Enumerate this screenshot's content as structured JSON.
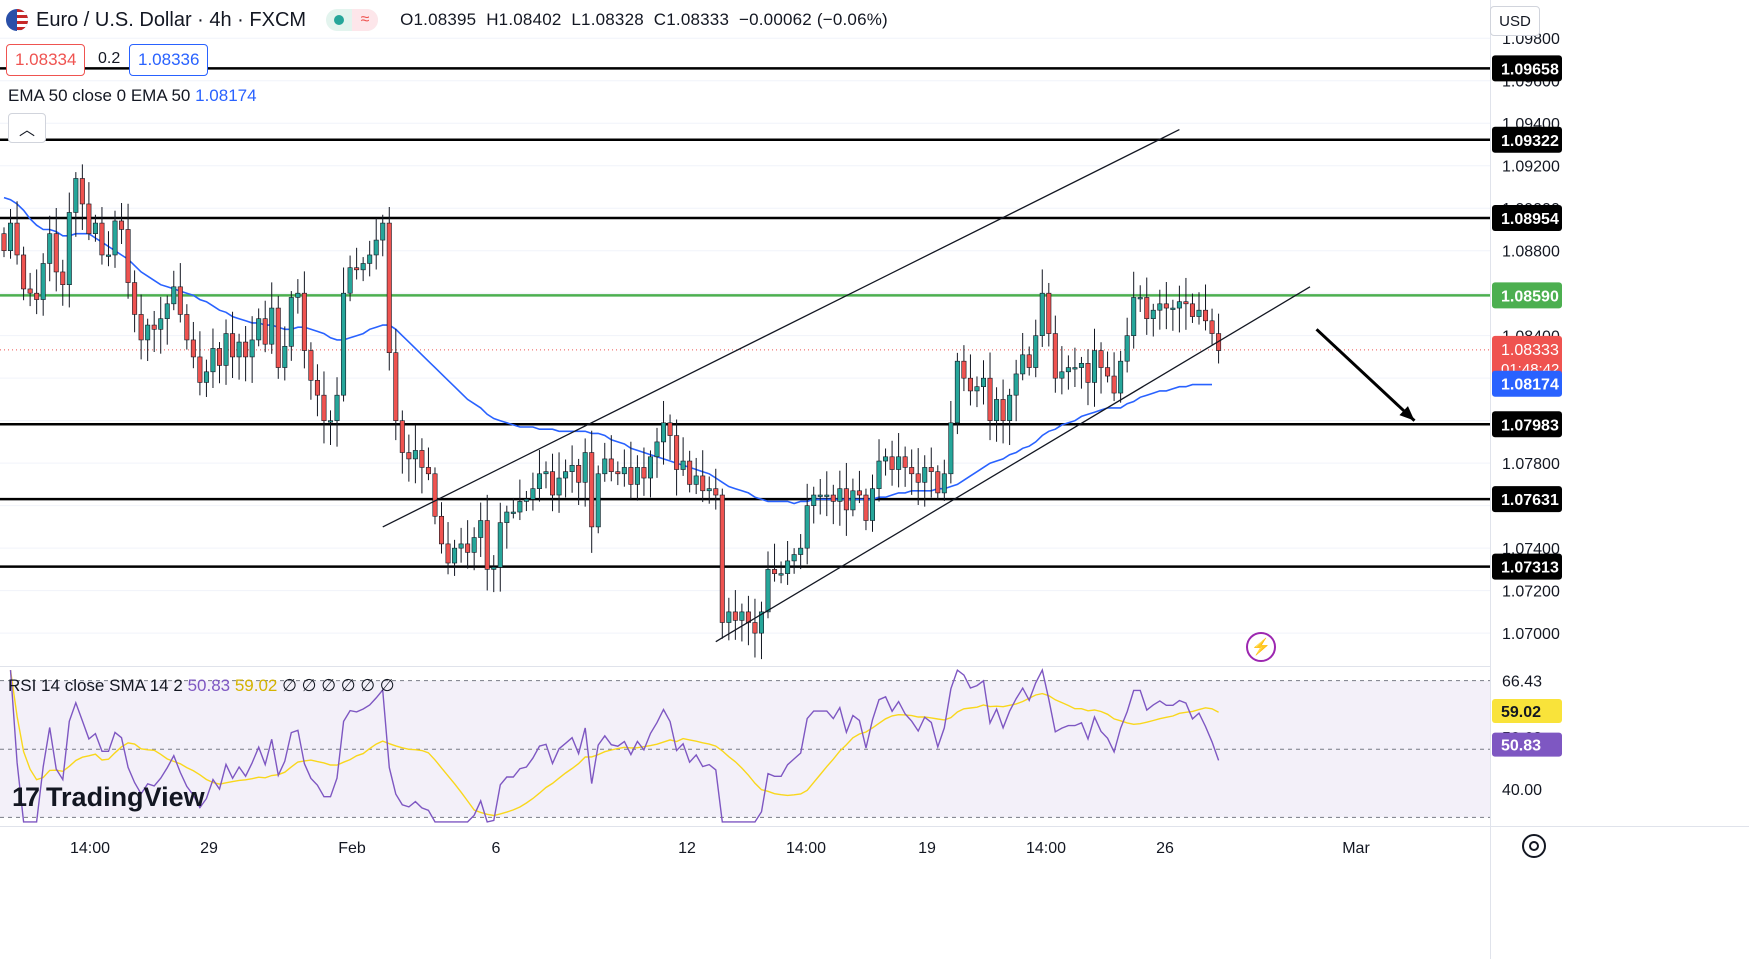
{
  "header": {
    "symbol": "Euro / U.S. Dollar · 4h · FXCM",
    "open": "O1.08395",
    "high": "H1.08402",
    "low": "L1.08328",
    "close": "C1.08333",
    "change": "−0.00062 (−0.06%)"
  },
  "quote": {
    "sell": "1.08334",
    "spread": "0.2",
    "buy": "1.08336"
  },
  "indicators": {
    "ema_label": "EMA 50 close 0 EMA 50",
    "ema_value": "1.08174",
    "rsi_label": "RSI 14 close SMA 14 2",
    "rsi_value": "50.83",
    "sma_value": "59.02",
    "rsi_tail": "∅ ∅ ∅ ∅ ∅ ∅"
  },
  "axis": {
    "currency": "USD",
    "countdown": "01:48:42"
  },
  "brand": {
    "name": "TradingView"
  },
  "colors": {
    "up": "#26a69a",
    "down": "#ef5350",
    "ema": "#2962ff",
    "rsi": "#7e57c2",
    "rsi_sma": "#f9d71c",
    "support_green": "#4caf50"
  },
  "chart_data": {
    "type": "candlestick",
    "title": "Euro / U.S. Dollar · 4h · FXCM",
    "price_axis": {
      "ticks": [
        "1.09800",
        "1.09600",
        "1.09400",
        "1.09200",
        "1.09000",
        "1.08800",
        "1.08600",
        "1.08400",
        "1.08200",
        "1.08000",
        "1.07800",
        "1.07600",
        "1.07400",
        "1.07200",
        "1.07000"
      ],
      "ylim": [
        1.0685,
        1.0998
      ]
    },
    "time_axis": {
      "ticks": [
        "14:00",
        "29",
        "Feb",
        "6",
        "12",
        "14:00",
        "19",
        "14:00",
        "26",
        "Mar"
      ]
    },
    "horizontal_levels": [
      {
        "price": 1.09658,
        "label": "1.09658",
        "color": "#000000"
      },
      {
        "price": 1.09322,
        "label": "1.09322",
        "color": "#000000"
      },
      {
        "price": 1.08954,
        "label": "1.08954",
        "color": "#000000"
      },
      {
        "price": 1.0859,
        "label": "1.08590",
        "color": "#4caf50"
      },
      {
        "price": 1.07983,
        "label": "1.07983",
        "color": "#000000"
      },
      {
        "price": 1.07631,
        "label": "1.07631",
        "color": "#000000"
      },
      {
        "price": 1.07313,
        "label": "1.07313",
        "color": "#000000"
      }
    ],
    "price_markers": [
      {
        "price": 1.08333,
        "label": "1.08333",
        "color": "#ef5350"
      },
      {
        "price": 1.08174,
        "label": "1.08174",
        "color": "#2962ff"
      }
    ],
    "current_price": 1.08333,
    "closes": [
      1.088,
      1.0893,
      1.0878,
      1.0862,
      1.086,
      1.0857,
      1.0874,
      1.0888,
      1.087,
      1.0864,
      1.0898,
      1.0914,
      1.0902,
      1.0888,
      1.0893,
      1.0878,
      1.0878,
      1.0894,
      1.089,
      1.0865,
      1.085,
      1.0838,
      1.0845,
      1.0843,
      1.0848,
      1.0855,
      1.0863,
      1.085,
      1.0838,
      1.083,
      1.0818,
      1.0823,
      1.0834,
      1.0826,
      1.0841,
      1.083,
      1.0837,
      1.083,
      1.0838,
      1.0848,
      1.0836,
      1.0853,
      1.0825,
      1.0835,
      1.0858,
      1.086,
      1.0833,
      1.0819,
      1.0812,
      1.08,
      1.08,
      1.0812,
      1.086,
      1.0872,
      1.0871,
      1.0874,
      1.0878,
      1.0885,
      1.0893,
      1.0832,
      1.08,
      1.0785,
      1.0782,
      1.0786,
      1.0778,
      1.0775,
      1.0755,
      1.0742,
      1.0733,
      1.074,
      1.0742,
      1.0738,
      1.0745,
      1.0753,
      1.073,
      1.0731,
      1.0752,
      1.0757,
      1.0757,
      1.0762,
      1.0763,
      1.0768,
      1.0775,
      1.0776,
      1.0765,
      1.0773,
      1.0776,
      1.0779,
      1.0771,
      1.0785,
      1.075,
      1.0775,
      1.0782,
      1.0776,
      1.0775,
      1.0778,
      1.077,
      1.0778,
      1.0773,
      1.0783,
      1.079,
      1.0799,
      1.0793,
      1.0777,
      1.0781,
      1.077,
      1.0774,
      1.0767,
      1.0768,
      1.0765,
      1.0705,
      1.071,
      1.0706,
      1.071,
      1.0705,
      1.07,
      1.071,
      1.073,
      1.0728,
      1.0728,
      1.0734,
      1.0737,
      1.074,
      1.076,
      1.0765,
      1.0765,
      1.0765,
      1.0762,
      1.0768,
      1.0758,
      1.0767,
      1.0765,
      1.0753,
      1.0768,
      1.0781,
      1.0783,
      1.0777,
      1.0783,
      1.0778,
      1.0775,
      1.0771,
      1.0778,
      1.0776,
      1.0766,
      1.0775,
      1.0799,
      1.0828,
      1.082,
      1.0814,
      1.0816,
      1.082,
      1.08,
      1.081,
      1.08,
      1.0812,
      1.0822,
      1.0831,
      1.0825,
      1.084,
      1.086,
      1.0841,
      1.082,
      1.0823,
      1.0825,
      1.0825,
      1.0827,
      1.0818,
      1.0833,
      1.0825,
      1.0821,
      1.0813,
      1.0828,
      1.084,
      1.0858,
      1.0858,
      1.0848,
      1.0852,
      1.0855,
      1.0853,
      1.0853,
      1.0856,
      1.0855,
      1.0849,
      1.0852,
      1.0847,
      1.0841,
      1.0833
    ],
    "ema50": [
      1.0905,
      1.0904,
      1.0902,
      1.0899,
      1.0895,
      1.0892,
      1.089,
      1.089,
      1.0889,
      1.0887,
      1.0887,
      1.0888,
      1.0888,
      1.0888,
      1.0886,
      1.0884,
      1.0882,
      1.088,
      1.0878,
      1.0876,
      1.0873,
      1.087,
      1.0868,
      1.0866,
      1.0864,
      1.0863,
      1.0862,
      1.0861,
      1.086,
      1.0859,
      1.0857,
      1.0856,
      1.0854,
      1.0852,
      1.0851,
      1.0849,
      1.0848,
      1.0847,
      1.0846,
      1.0846,
      1.0845,
      1.0845,
      1.0844,
      1.0843,
      1.0843,
      1.0844,
      1.0844,
      1.0843,
      1.0842,
      1.0841,
      1.0839,
      1.0838,
      1.0838,
      1.0839,
      1.084,
      1.0841,
      1.0843,
      1.0844,
      1.0845,
      1.0845,
      1.0843,
      1.084,
      1.0837,
      1.0834,
      1.0831,
      1.0828,
      1.0825,
      1.0822,
      1.0819,
      1.0816,
      1.0813,
      1.081,
      1.0808,
      1.0806,
      1.0803,
      1.0801,
      1.08,
      1.0799,
      1.0798,
      1.0797,
      1.0797,
      1.0797,
      1.0796,
      1.0796,
      1.0796,
      1.0795,
      1.0795,
      1.0795,
      1.0795,
      1.0795,
      1.0794,
      1.0794,
      1.0793,
      1.0791,
      1.079,
      1.0789,
      1.0787,
      1.0786,
      1.0785,
      1.0784,
      1.0783,
      1.0782,
      1.0781,
      1.078,
      1.0779,
      1.0778,
      1.0777,
      1.0776,
      1.0775,
      1.0773,
      1.0771,
      1.0769,
      1.0768,
      1.0767,
      1.0766,
      1.0764,
      1.0763,
      1.0762,
      1.0762,
      1.0762,
      1.0762,
      1.0761,
      1.0762,
      1.0762,
      1.0763,
      1.0763,
      1.0763,
      1.0763,
      1.0763,
      1.0763,
      1.0763,
      1.0763,
      1.0763,
      1.0763,
      1.0764,
      1.0764,
      1.0765,
      1.0766,
      1.0766,
      1.0767,
      1.0767,
      1.0767,
      1.0767,
      1.0768,
      1.0768,
      1.0769,
      1.077,
      1.0772,
      1.0774,
      1.0776,
      1.0778,
      1.078,
      1.0781,
      1.0782,
      1.0784,
      1.0785,
      1.0787,
      1.0788,
      1.079,
      1.0793,
      1.0795,
      1.0796,
      1.0798,
      1.0799,
      1.08,
      1.0802,
      1.0803,
      1.0804,
      1.0805,
      1.0806,
      1.0806,
      1.0806,
      1.0808,
      1.0809,
      1.0811,
      1.0812,
      1.0813,
      1.0814,
      1.0814,
      1.0815,
      1.0816,
      1.0816,
      1.0817,
      1.0817,
      1.0817,
      1.0817
    ],
    "rsi_panel": {
      "ticks": [
        "66.43",
        "52.68",
        "40.00"
      ],
      "ylim": [
        31,
        70
      ],
      "bands": [
        66.43,
        49.7,
        33.1
      ],
      "rsi_labels": [
        {
          "value": 59.02,
          "label": "59.02"
        },
        {
          "value": 50.83,
          "label": "50.83"
        }
      ]
    },
    "trendlines": [
      {
        "name": "channel-upper",
        "from": [
          58,
          1.075
        ],
        "to": [
          180,
          1.0937
        ]
      },
      {
        "name": "channel-lower",
        "from": [
          109,
          1.0696
        ],
        "to": [
          200,
          1.0863
        ]
      }
    ],
    "forecast_arrow": {
      "from": [
        201,
        1.0843
      ],
      "to": [
        216,
        1.08
      ]
    }
  }
}
